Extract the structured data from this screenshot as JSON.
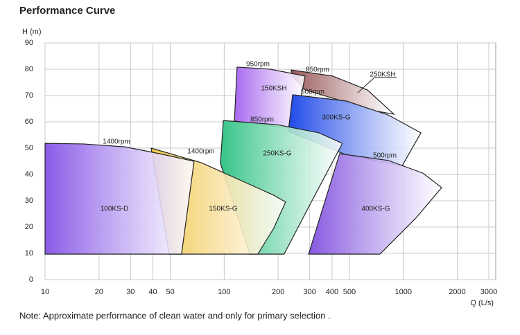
{
  "chart_data": {
    "type": "region",
    "title": "Performance Curve",
    "y_label": "H (m)",
    "x_label": "Q (L/s)",
    "note": "Note: Approximate performance of clean water and only for primary selection .",
    "xscale": "log",
    "xlim": [
      10,
      3000
    ],
    "ylim": [
      0,
      90
    ],
    "xticks": [
      10,
      20,
      30,
      40,
      50,
      100,
      200,
      300,
      400,
      500,
      1000,
      2000,
      3000
    ],
    "yticks": [
      0,
      10,
      20,
      30,
      40,
      50,
      60,
      70,
      80,
      90
    ],
    "grid": true,
    "regions": [
      {
        "name": "250KSH",
        "speed": "850rpm",
        "color": "#9a5a5a",
        "x": [
          237,
          403,
          631,
          885,
          689,
          441,
          283,
          237
        ],
        "y": [
          79.7,
          77.4,
          72.1,
          62.9,
          64.2,
          68.2,
          72.1,
          77.9
        ]
      },
      {
        "name": "150KSH",
        "speed": "950rpm",
        "color": "#a868f0",
        "x": [
          118,
          181,
          283,
          259,
          226,
          114
        ],
        "y": [
          80.8,
          80,
          77.4,
          64.2,
          57.6,
          60.3
        ]
      },
      {
        "name": "300KS-G",
        "speed": "500rpm",
        "color": "#1f4ae8",
        "x": [
          241,
          482,
          824,
          1253,
          984,
          482,
          228
        ],
        "y": [
          70.3,
          67.9,
          62.6,
          55.8,
          43.2,
          47.4,
          56.3
        ]
      },
      {
        "name": "400KS-G",
        "speed": "500rpm",
        "color": "#8658e0",
        "x": [
          441,
          824,
          1285,
          1636,
          1175,
          740,
          296
        ],
        "y": [
          47.9,
          45.3,
          40.5,
          35,
          23.4,
          9.7,
          9.7
        ]
      },
      {
        "name": "250KS-G",
        "speed": "850rpm",
        "color": "#36c488",
        "x": [
          98.9,
          198,
          338,
          457,
          309,
          216,
          139,
          95.3
        ],
        "y": [
          60.5,
          58.9,
          55.8,
          51.8,
          30,
          9.7,
          9.7,
          44.2
        ]
      },
      {
        "name": "150KS-G",
        "speed": "1400rpm",
        "color": "#f2c850",
        "x": [
          39.1,
          74.3,
          126.8,
          189,
          220,
          189,
          154,
          49.3
        ],
        "y": [
          50,
          44.5,
          37.4,
          32.1,
          29.5,
          19.5,
          9.7,
          9.7
        ]
      },
      {
        "name": "100KS-D",
        "speed": "1400rpm",
        "color": "#8a5ce8",
        "x": [
          10,
          16.3,
          27.9,
          43.5,
          67.9,
          57.8,
          10
        ],
        "y": [
          51.8,
          51.6,
          50.5,
          47.9,
          45,
          9.7,
          9.7
        ]
      }
    ]
  }
}
